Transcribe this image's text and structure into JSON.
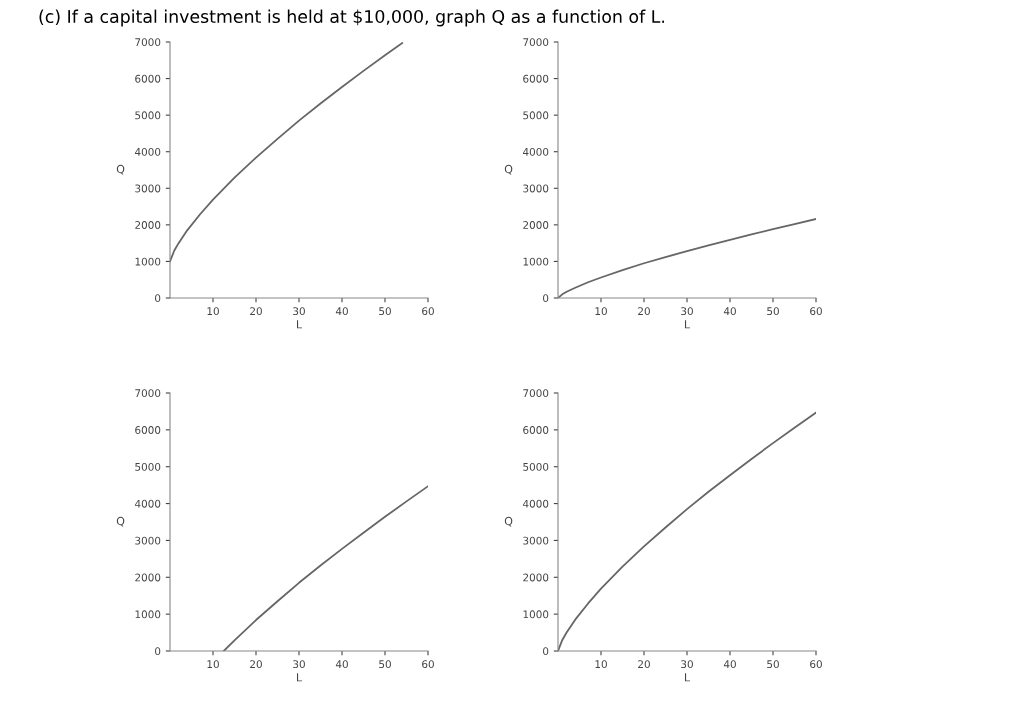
{
  "chart_data": [
    {
      "type": "line",
      "title": "(c) If a capital investment is held at $10,000, graph Q as a function of L.",
      "xlabel": "L",
      "ylabel": "Q",
      "xlim": [
        0,
        60
      ],
      "ylim": [
        0,
        7000
      ],
      "xticks": [
        10,
        20,
        30,
        40,
        50,
        60
      ],
      "yticks": [
        0,
        1000,
        2000,
        3000,
        4000,
        5000,
        6000,
        7000
      ],
      "grid": false,
      "legend": false,
      "series": [
        {
          "color": "#666666",
          "x": [
            0,
            1,
            2,
            4,
            7,
            10,
            15,
            20,
            25,
            30,
            35,
            40,
            45,
            50,
            54
          ],
          "values": [
            1000,
            1300,
            1500,
            1850,
            2290,
            2690,
            3290,
            3840,
            4350,
            4850,
            5320,
            5770,
            6210,
            6640,
            6970
          ]
        }
      ]
    },
    {
      "type": "line",
      "xlabel": "L",
      "ylabel": "Q",
      "xlim": [
        0,
        60
      ],
      "ylim": [
        0,
        7000
      ],
      "xticks": [
        10,
        20,
        30,
        40,
        50,
        60
      ],
      "yticks": [
        0,
        1000,
        2000,
        3000,
        4000,
        5000,
        6000,
        7000
      ],
      "grid": false,
      "legend": false,
      "series": [
        {
          "color": "#666666",
          "x": [
            0,
            1,
            2,
            4,
            7,
            10,
            15,
            20,
            25,
            30,
            35,
            40,
            45,
            50,
            55,
            60
          ],
          "values": [
            0,
            100,
            170,
            280,
            430,
            560,
            760,
            950,
            1120,
            1280,
            1440,
            1590,
            1740,
            1880,
            2020,
            2160
          ]
        }
      ]
    },
    {
      "type": "line",
      "xlabel": "L",
      "ylabel": "Q",
      "xlim": [
        0,
        60
      ],
      "ylim": [
        0,
        7000
      ],
      "xticks": [
        10,
        20,
        30,
        40,
        50,
        60
      ],
      "yticks": [
        0,
        1000,
        2000,
        3000,
        4000,
        5000,
        6000,
        7000
      ],
      "grid": false,
      "legend": false,
      "series": [
        {
          "color": "#666666",
          "x": [
            12.5,
            15,
            20,
            25,
            30,
            35,
            40,
            45,
            50,
            55,
            60
          ],
          "values": [
            0,
            290,
            840,
            1350,
            1850,
            2320,
            2770,
            3210,
            3640,
            4060,
            4470
          ]
        }
      ]
    },
    {
      "type": "line",
      "xlabel": "L",
      "ylabel": "Q",
      "xlim": [
        0,
        60
      ],
      "ylim": [
        0,
        7000
      ],
      "xticks": [
        10,
        20,
        30,
        40,
        50,
        60
      ],
      "yticks": [
        0,
        1000,
        2000,
        3000,
        4000,
        5000,
        6000,
        7000
      ],
      "grid": false,
      "legend": false,
      "series": [
        {
          "color": "#666666",
          "x": [
            0,
            1,
            2,
            4,
            7,
            10,
            15,
            20,
            25,
            30,
            35,
            40,
            45,
            50,
            55,
            60
          ],
          "values": [
            0,
            300,
            500,
            850,
            1290,
            1690,
            2290,
            2840,
            3350,
            3850,
            4320,
            4770,
            5210,
            5640,
            6060,
            6470
          ]
        }
      ]
    }
  ]
}
